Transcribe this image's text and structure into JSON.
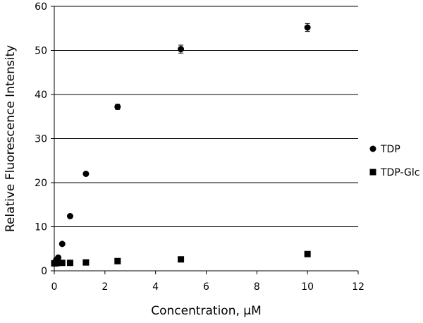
{
  "chart_data": {
    "type": "scatter",
    "title": "",
    "xlabel": "Concentration, μM",
    "ylabel": "Relative Fluorescence Intensity",
    "xlim": [
      0,
      12
    ],
    "ylim": [
      0,
      60
    ],
    "x_ticks": [
      0,
      2,
      4,
      6,
      8,
      10,
      12
    ],
    "y_ticks": [
      0,
      10,
      20,
      30,
      40,
      50,
      60
    ],
    "grid": "horizontal",
    "legend": "right",
    "series": [
      {
        "name": "TDP",
        "marker": "circle",
        "color": "#000000",
        "x": [
          0,
          0.039,
          0.078,
          0.156,
          0.313,
          0.625,
          1.25,
          2.5,
          5,
          10
        ],
        "y": [
          1.8,
          2.0,
          2.5,
          3.0,
          6.1,
          12.4,
          22.0,
          37.2,
          50.3,
          55.2
        ],
        "error": [
          0,
          0,
          0,
          0,
          0,
          0,
          0.3,
          0.6,
          0.9,
          0.9
        ]
      },
      {
        "name": "TDP-Glc",
        "marker": "square",
        "color": "#000000",
        "x": [
          0,
          0.039,
          0.078,
          0.156,
          0.313,
          0.625,
          1.25,
          2.5,
          5,
          10
        ],
        "y": [
          1.7,
          1.7,
          1.8,
          1.8,
          1.8,
          1.8,
          1.9,
          2.2,
          2.6,
          3.8
        ],
        "error": [
          0,
          0,
          0,
          0,
          0,
          0,
          0,
          0,
          0,
          0
        ]
      }
    ]
  }
}
